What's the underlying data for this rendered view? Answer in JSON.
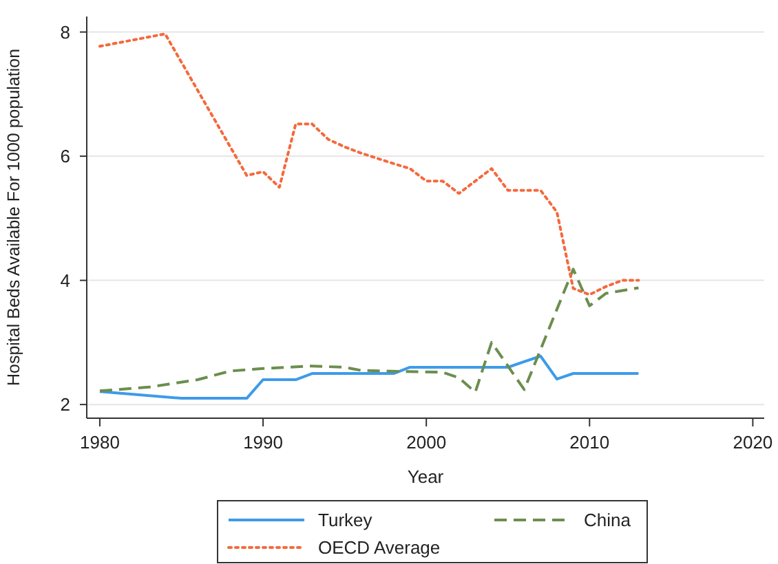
{
  "chart_data": {
    "type": "line",
    "xlabel": "Year",
    "ylabel": "Hospital Beds Available For 1000 population",
    "xlim": [
      1979.2,
      2020.7
    ],
    "xticks": [
      1980,
      1990,
      2000,
      2010,
      2020
    ],
    "ylim": [
      1.78,
      8.25
    ],
    "yticks": [
      2,
      4,
      6,
      8
    ],
    "grid": "y",
    "legend": "bottom",
    "series": [
      {
        "name": "Turkey",
        "color": "#3d9be9",
        "line_style": "solid",
        "x": [
          1980,
          1985,
          1989,
          1990,
          1992,
          1993,
          1998,
          1999,
          2005,
          2007,
          2008,
          2009,
          2013
        ],
        "values": [
          2.21,
          2.1,
          2.1,
          2.4,
          2.4,
          2.5,
          2.5,
          2.6,
          2.6,
          2.78,
          2.41,
          2.5,
          2.5
        ]
      },
      {
        "name": "China",
        "color": "#6b8e4e",
        "line_style": "dashed",
        "x": [
          1980,
          1983,
          1986,
          1988,
          1990,
          1993,
          1995,
          1996,
          1999,
          2001,
          2002,
          2003,
          2004,
          2006,
          2009,
          2010,
          2011,
          2013
        ],
        "values": [
          2.22,
          2.28,
          2.4,
          2.54,
          2.58,
          2.62,
          2.6,
          2.55,
          2.53,
          2.52,
          2.43,
          2.2,
          3.0,
          2.24,
          4.18,
          3.59,
          3.79,
          3.88
        ]
      },
      {
        "name": "OECD Average",
        "color": "#f4693c",
        "line_style": "dotted",
        "x": [
          1980,
          1984,
          1989,
          1990,
          1991,
          1992,
          1993,
          1994,
          1995,
          1996,
          1998,
          1999,
          2000,
          2001,
          2002,
          2004,
          2005,
          2007,
          2008,
          2009,
          2010,
          2011,
          2012,
          2013
        ],
        "values": [
          7.77,
          7.97,
          5.69,
          5.75,
          5.5,
          6.52,
          6.52,
          6.27,
          6.15,
          6.05,
          5.88,
          5.8,
          5.6,
          5.6,
          5.4,
          5.8,
          5.45,
          5.45,
          5.1,
          3.87,
          3.77,
          3.9,
          4.0,
          4.0
        ]
      }
    ]
  }
}
